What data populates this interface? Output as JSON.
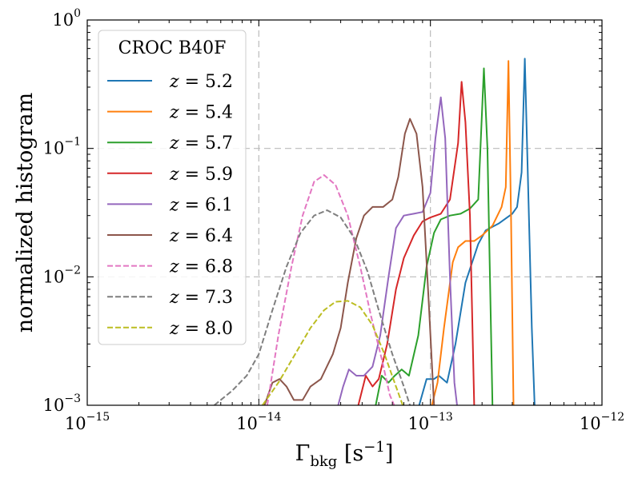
{
  "chart_data": {
    "type": "line",
    "title": "",
    "xscale": "log",
    "yscale": "log",
    "xlim": [
      1e-15,
      1e-12
    ],
    "ylim": [
      0.001,
      1
    ],
    "xlabel": "Γbkg [s−1]",
    "xlabel_parts": {
      "base": "Γ",
      "sub": "bkg",
      "unit_open": " [s",
      "unit_sup": "−1",
      "unit_close": "]"
    },
    "ylabel": "normalized histogram",
    "x_ticks": [
      {
        "value": 1e-15,
        "base": "10",
        "exp": "−15"
      },
      {
        "value": 1e-14,
        "base": "10",
        "exp": "−14"
      },
      {
        "value": 1e-13,
        "base": "10",
        "exp": "−13"
      },
      {
        "value": 1e-12,
        "base": "10",
        "exp": "−12"
      }
    ],
    "y_ticks": [
      {
        "value": 0.001,
        "base": "10",
        "exp": "−3"
      },
      {
        "value": 0.01,
        "base": "10",
        "exp": "−2"
      },
      {
        "value": 0.1,
        "base": "10",
        "exp": "−1"
      },
      {
        "value": 1,
        "base": "10",
        "exp": "0"
      }
    ],
    "gridlines": {
      "x": [
        1e-14,
        1e-13
      ],
      "y": [
        0.01,
        0.1
      ],
      "style": "dashed",
      "color": "#bbbbbb"
    },
    "legend": {
      "title": "CROC B40F",
      "placement": "upper-left"
    },
    "series": [
      {
        "name": "z = 5.2",
        "z_value": "5.2",
        "color": "#1f77b4",
        "dash": "solid",
        "points": [
          [
            8.6e-14,
            0.001
          ],
          [
            9.5e-14,
            0.0016
          ],
          [
            1.05e-13,
            0.0016
          ],
          [
            1.12e-13,
            0.0017
          ],
          [
            1.25e-13,
            0.0015
          ],
          [
            1.4e-13,
            0.003
          ],
          [
            1.6e-13,
            0.009
          ],
          [
            1.9e-13,
            0.018
          ],
          [
            2.1e-13,
            0.023
          ],
          [
            2.5e-13,
            0.026
          ],
          [
            3e-13,
            0.031
          ],
          [
            3.2e-13,
            0.035
          ],
          [
            3.4e-13,
            0.065
          ],
          [
            3.55e-13,
            0.5
          ],
          [
            3.7e-13,
            0.06
          ],
          [
            3.9e-13,
            0.004
          ],
          [
            4.05e-13,
            0.001
          ]
        ]
      },
      {
        "name": "z = 5.4",
        "z_value": "5.4",
        "color": "#ff7f0e",
        "dash": "solid",
        "points": [
          [
            1.02e-13,
            0.001
          ],
          [
            1.1e-13,
            0.0015
          ],
          [
            1.2e-13,
            0.004
          ],
          [
            1.35e-13,
            0.013
          ],
          [
            1.45e-13,
            0.017
          ],
          [
            1.6e-13,
            0.019
          ],
          [
            1.8e-13,
            0.019
          ],
          [
            2e-13,
            0.021
          ],
          [
            2.3e-13,
            0.025
          ],
          [
            2.6e-13,
            0.035
          ],
          [
            2.75e-13,
            0.05
          ],
          [
            2.85e-13,
            0.48
          ],
          [
            2.95e-13,
            0.03
          ],
          [
            3.05e-13,
            0.001
          ]
        ]
      },
      {
        "name": "z = 5.7",
        "z_value": "5.7",
        "color": "#2ca02c",
        "dash": "solid",
        "points": [
          [
            4.8e-14,
            0.001
          ],
          [
            5.2e-14,
            0.0017
          ],
          [
            5.7e-14,
            0.0015
          ],
          [
            6.2e-14,
            0.0017
          ],
          [
            6.8e-14,
            0.0019
          ],
          [
            7.5e-14,
            0.0017
          ],
          [
            8.5e-14,
            0.0035
          ],
          [
            9.5e-14,
            0.012
          ],
          [
            1.05e-13,
            0.022
          ],
          [
            1.15e-13,
            0.028
          ],
          [
            1.3e-13,
            0.03
          ],
          [
            1.5e-13,
            0.031
          ],
          [
            1.7e-13,
            0.034
          ],
          [
            1.9e-13,
            0.04
          ],
          [
            2.05e-13,
            0.42
          ],
          [
            2.15e-13,
            0.1
          ],
          [
            2.3e-13,
            0.001
          ]
        ]
      },
      {
        "name": "z = 5.9",
        "z_value": "5.9",
        "color": "#d62728",
        "dash": "solid",
        "points": [
          [
            3.8e-14,
            0.001
          ],
          [
            4.2e-14,
            0.0017
          ],
          [
            4.6e-14,
            0.0014
          ],
          [
            5e-14,
            0.0016
          ],
          [
            5.6e-14,
            0.003
          ],
          [
            6.3e-14,
            0.008
          ],
          [
            7e-14,
            0.014
          ],
          [
            8e-14,
            0.021
          ],
          [
            9e-14,
            0.027
          ],
          [
            1e-13,
            0.029
          ],
          [
            1.15e-13,
            0.031
          ],
          [
            1.3e-13,
            0.04
          ],
          [
            1.45e-13,
            0.11
          ],
          [
            1.52e-13,
            0.33
          ],
          [
            1.6e-13,
            0.16
          ],
          [
            1.7e-13,
            0.03
          ],
          [
            1.8e-13,
            0.001
          ]
        ]
      },
      {
        "name": "z = 6.1",
        "z_value": "6.1",
        "color": "#9467bd",
        "dash": "solid",
        "points": [
          [
            2.9e-14,
            0.001
          ],
          [
            3.1e-14,
            0.0014
          ],
          [
            3.35e-14,
            0.0019
          ],
          [
            3.7e-14,
            0.0017
          ],
          [
            4.1e-14,
            0.0017
          ],
          [
            4.6e-14,
            0.002
          ],
          [
            5.1e-14,
            0.0035
          ],
          [
            5.7e-14,
            0.01
          ],
          [
            6.3e-14,
            0.024
          ],
          [
            7e-14,
            0.03
          ],
          [
            8e-14,
            0.031
          ],
          [
            9e-14,
            0.032
          ],
          [
            1e-13,
            0.045
          ],
          [
            1.07e-13,
            0.12
          ],
          [
            1.15e-13,
            0.25
          ],
          [
            1.22e-13,
            0.12
          ],
          [
            1.3e-13,
            0.01
          ],
          [
            1.38e-13,
            0.0015
          ],
          [
            1.43e-13,
            0.001
          ]
        ]
      },
      {
        "name": "z = 6.4",
        "z_value": "6.4",
        "color": "#8c564b",
        "dash": "solid",
        "points": [
          [
            1.08e-14,
            0.001
          ],
          [
            1.2e-14,
            0.0015
          ],
          [
            1.32e-14,
            0.0016
          ],
          [
            1.45e-14,
            0.0014
          ],
          [
            1.6e-14,
            0.0011
          ],
          [
            1.8e-14,
            0.0011
          ],
          [
            2e-14,
            0.0014
          ],
          [
            2.3e-14,
            0.0016
          ],
          [
            2.7e-14,
            0.0025
          ],
          [
            3e-14,
            0.004
          ],
          [
            3.3e-14,
            0.009
          ],
          [
            3.7e-14,
            0.02
          ],
          [
            4.1e-14,
            0.03
          ],
          [
            4.6e-14,
            0.035
          ],
          [
            5.3e-14,
            0.035
          ],
          [
            6e-14,
            0.04
          ],
          [
            6.5e-14,
            0.06
          ],
          [
            7.1e-14,
            0.13
          ],
          [
            7.6e-14,
            0.17
          ],
          [
            8.3e-14,
            0.13
          ],
          [
            9e-14,
            0.05
          ],
          [
            9.8e-14,
            0.006
          ],
          [
            1.05e-13,
            0.001
          ]
        ]
      },
      {
        "name": "z = 6.8",
        "z_value": "6.8",
        "color": "#e377c2",
        "dash": "dashed",
        "points": [
          [
            1.12e-14,
            0.001
          ],
          [
            1.3e-14,
            0.0035
          ],
          [
            1.55e-14,
            0.012
          ],
          [
            1.8e-14,
            0.03
          ],
          [
            2.1e-14,
            0.055
          ],
          [
            2.4e-14,
            0.062
          ],
          [
            2.8e-14,
            0.052
          ],
          [
            3.3e-14,
            0.03
          ],
          [
            3.9e-14,
            0.012
          ],
          [
            4.5e-14,
            0.005
          ],
          [
            5.2e-14,
            0.0023
          ],
          [
            5.8e-14,
            0.0012
          ],
          [
            6.15e-14,
            0.001
          ]
        ]
      },
      {
        "name": "z = 7.3",
        "z_value": "7.3",
        "color": "#7f7f7f",
        "dash": "dashed",
        "points": [
          [
            5.5e-15,
            0.001
          ],
          [
            7e-15,
            0.0013
          ],
          [
            8.5e-15,
            0.0017
          ],
          [
            1e-14,
            0.0025
          ],
          [
            1.2e-14,
            0.0055
          ],
          [
            1.45e-14,
            0.012
          ],
          [
            1.75e-14,
            0.022
          ],
          [
            2.1e-14,
            0.03
          ],
          [
            2.5e-14,
            0.033
          ],
          [
            3e-14,
            0.029
          ],
          [
            3.6e-14,
            0.02
          ],
          [
            4.3e-14,
            0.011
          ],
          [
            5e-14,
            0.0055
          ],
          [
            6e-14,
            0.0025
          ],
          [
            7e-14,
            0.0014
          ],
          [
            7.6e-14,
            0.001
          ]
        ]
      },
      {
        "name": "z = 8.0",
        "z_value": "8.0",
        "color": "#bcbd22",
        "dash": "dashed",
        "points": [
          [
            1.05e-14,
            0.001
          ],
          [
            1.3e-14,
            0.0015
          ],
          [
            1.6e-14,
            0.0024
          ],
          [
            2e-14,
            0.004
          ],
          [
            2.4e-14,
            0.0055
          ],
          [
            2.8e-14,
            0.0064
          ],
          [
            3.3e-14,
            0.0065
          ],
          [
            3.9e-14,
            0.0058
          ],
          [
            4.6e-14,
            0.0042
          ],
          [
            5.4e-14,
            0.0025
          ],
          [
            6.3e-14,
            0.0014
          ],
          [
            6.9e-14,
            0.001
          ]
        ]
      }
    ]
  }
}
